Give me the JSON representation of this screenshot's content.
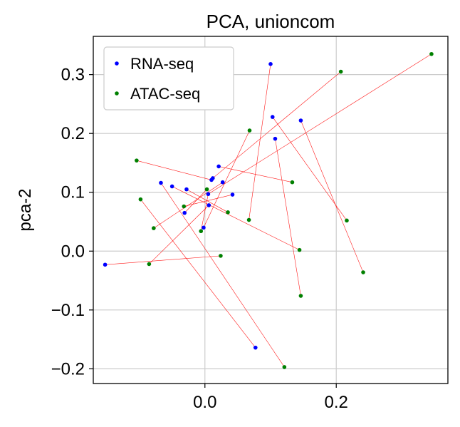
{
  "chart_data": {
    "type": "scatter",
    "title": "PCA, unioncom",
    "xlabel": "",
    "ylabel": "pca-2",
    "xlim": [
      -0.17,
      0.37
    ],
    "ylim": [
      -0.225,
      0.365
    ],
    "xticks": [
      0.0,
      0.2
    ],
    "xtick_labels": [
      "0.0",
      "0.2"
    ],
    "yticks": [
      -0.2,
      -0.1,
      0.0,
      0.1,
      0.2,
      0.3
    ],
    "ytick_labels": [
      "−0.2",
      "−0.1",
      "0.0",
      "0.1",
      "0.2",
      "0.3"
    ],
    "grid": true,
    "legend_position": "top-left",
    "series": [
      {
        "name": "RNA-seq",
        "color": "#0000ff",
        "x": [
          0.1,
          0.103,
          0.107,
          0.146,
          0.021,
          0.01,
          0.012,
          0.027,
          0.042,
          -0.067,
          -0.05,
          -0.028,
          0.005,
          0.006,
          -0.002,
          -0.031,
          -0.152,
          0.077
        ],
        "y": [
          0.318,
          0.228,
          0.191,
          0.222,
          0.144,
          0.121,
          0.124,
          0.117,
          0.096,
          0.116,
          0.11,
          0.105,
          0.097,
          0.078,
          0.04,
          0.065,
          -0.023,
          -0.164
        ]
      },
      {
        "name": "ATAC-seq",
        "color": "#008000",
        "x": [
          0.345,
          0.207,
          0.068,
          -0.104,
          0.133,
          0.003,
          -0.032,
          0.035,
          0.067,
          -0.078,
          -0.006,
          -0.098,
          0.144,
          0.024,
          -0.085,
          0.216,
          0.241,
          0.146,
          0.121
        ],
        "y": [
          0.335,
          0.305,
          0.205,
          0.154,
          0.117,
          0.105,
          0.076,
          0.066,
          0.053,
          0.039,
          0.034,
          0.088,
          0.002,
          -0.008,
          -0.022,
          0.052,
          -0.036,
          -0.076,
          -0.197
        ]
      }
    ],
    "links": {
      "color": "#ff0000",
      "pairs": [
        [
          [
            0.1,
            0.318
          ],
          [
            0.067,
            0.053
          ]
        ],
        [
          [
            0.107,
            0.191
          ],
          [
            0.146,
            -0.076
          ]
        ],
        [
          [
            0.146,
            0.222
          ],
          [
            0.241,
            -0.036
          ]
        ],
        [
          [
            0.103,
            0.228
          ],
          [
            0.216,
            0.052
          ]
        ],
        [
          [
            0.021,
            0.144
          ],
          [
            0.133,
            0.117
          ]
        ],
        [
          [
            -0.05,
            0.11
          ],
          [
            0.144,
            0.002
          ]
        ],
        [
          [
            -0.028,
            0.105
          ],
          [
            0.035,
            0.066
          ]
        ],
        [
          [
            0.01,
            0.121
          ],
          [
            -0.104,
            0.154
          ]
        ],
        [
          [
            0.027,
            0.117
          ],
          [
            -0.078,
            0.039
          ]
        ],
        [
          [
            0.042,
            0.096
          ],
          [
            -0.032,
            0.076
          ]
        ],
        [
          [
            -0.067,
            0.116
          ],
          [
            0.121,
            -0.197
          ]
        ],
        [
          [
            0.006,
            0.078
          ],
          [
            -0.085,
            -0.022
          ]
        ],
        [
          [
            -0.002,
            0.04
          ],
          [
            0.068,
            0.205
          ]
        ],
        [
          [
            -0.031,
            0.065
          ],
          [
            0.003,
            0.105
          ]
        ],
        [
          [
            -0.152,
            -0.023
          ],
          [
            0.024,
            -0.008
          ]
        ],
        [
          [
            0.077,
            -0.164
          ],
          [
            -0.098,
            0.088
          ]
        ],
        [
          [
            0.012,
            0.124
          ],
          [
            0.207,
            0.305
          ]
        ],
        [
          [
            0.005,
            0.097
          ],
          [
            0.345,
            0.335
          ]
        ],
        [
          [
            -0.006,
            0.034
          ],
          [
            0.005,
            0.097
          ]
        ]
      ]
    }
  }
}
